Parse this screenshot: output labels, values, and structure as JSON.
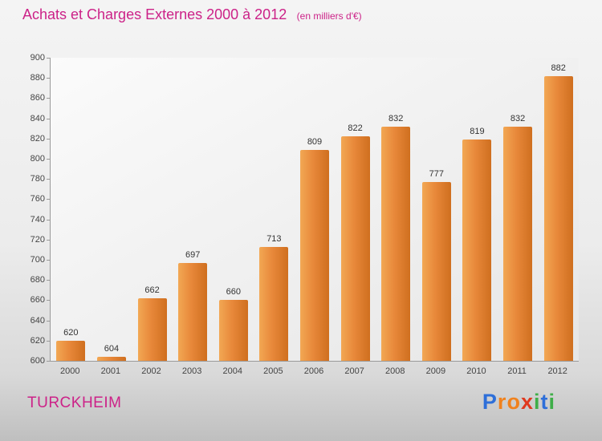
{
  "title": "Achats et Charges Externes 2000 à 2012",
  "subtitle": "(en milliers d'€)",
  "footer": {
    "company": "TURCKHEIM",
    "logo_letters": [
      {
        "ch": "P",
        "color": "#2e6fd9"
      },
      {
        "ch": "r",
        "color": "#f0821e"
      },
      {
        "ch": "o",
        "color": "#f0821e"
      },
      {
        "ch": "x",
        "color": "#e0391f"
      },
      {
        "ch": "i",
        "color": "#3fae49"
      },
      {
        "ch": "t",
        "color": "#2e6fd9"
      },
      {
        "ch": "i",
        "color": "#3fae49"
      }
    ]
  },
  "colors": {
    "title": "#cc2288",
    "bar_light": "#f2a854",
    "bar_dark": "#cf6f1f",
    "axis": "#9a9a9a",
    "tick_text": "#444444",
    "value_text": "#333333"
  },
  "chart_data": {
    "type": "bar",
    "title": "Achats et Charges Externes 2000 à 2012",
    "subtitle": "(en milliers d'€)",
    "categories": [
      "2000",
      "2001",
      "2002",
      "2003",
      "2004",
      "2005",
      "2006",
      "2007",
      "2008",
      "2009",
      "2010",
      "2011",
      "2012"
    ],
    "values": [
      620,
      604,
      662,
      697,
      660,
      713,
      809,
      822,
      832,
      777,
      819,
      832,
      882
    ],
    "xlabel": "",
    "ylabel": "",
    "ylim": [
      600,
      900
    ],
    "ytick_step": 20,
    "grid": false,
    "legend": "none"
  }
}
